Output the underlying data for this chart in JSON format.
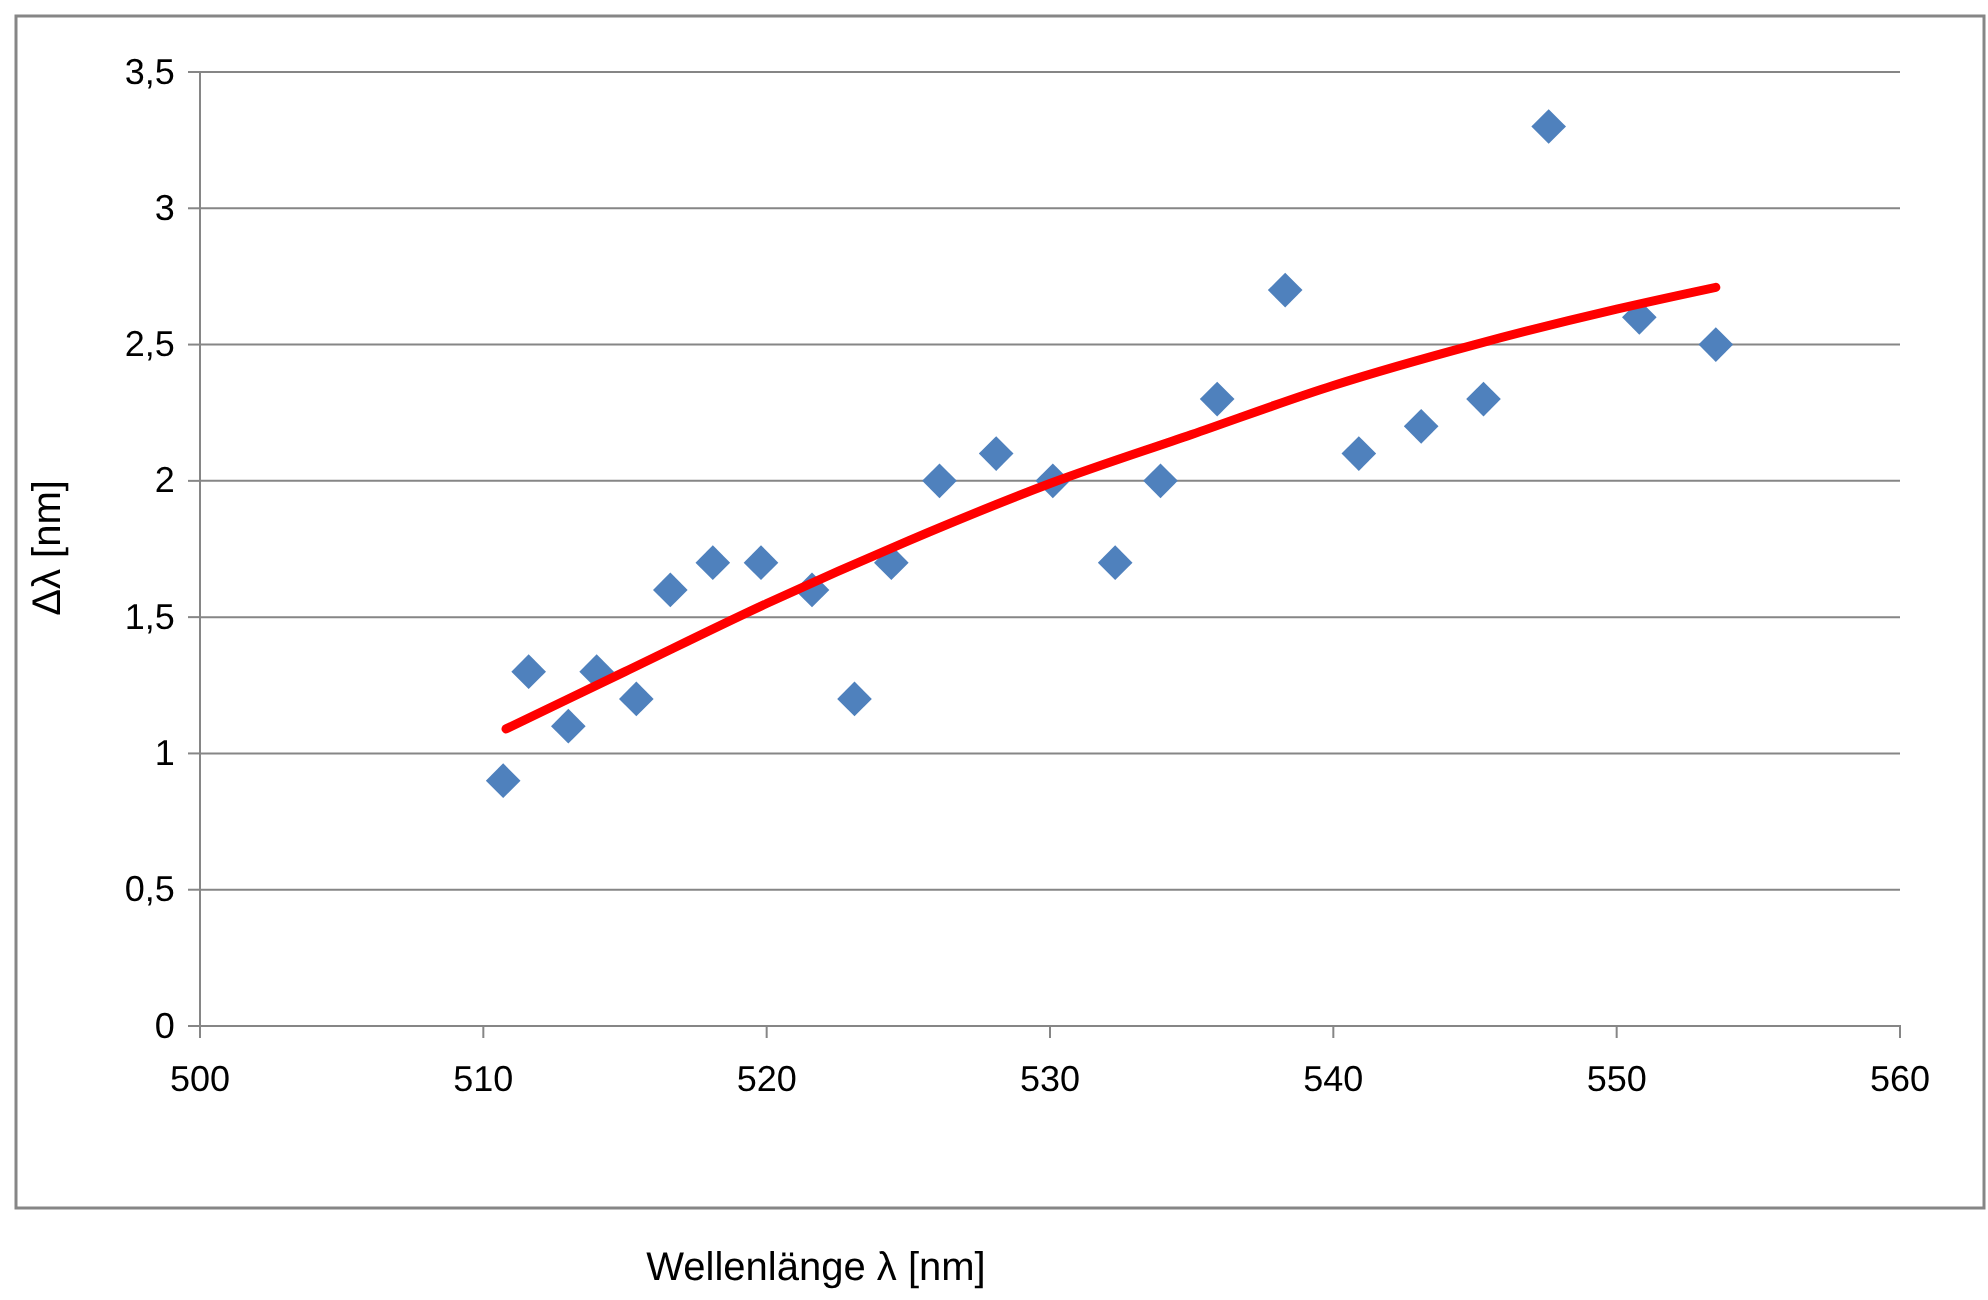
{
  "chart_data": {
    "type": "scatter",
    "xlabel": "Wellenlänge λ [nm]",
    "ylabel": "Δλ [nm]",
    "xlim": [
      500,
      560
    ],
    "xticks": [
      500,
      510,
      520,
      530,
      540,
      550,
      560
    ],
    "ylim": [
      0,
      3.5
    ],
    "yticks": [
      {
        "value": 0,
        "label": "0"
      },
      {
        "value": 0.5,
        "label": "0,5"
      },
      {
        "value": 1,
        "label": "1"
      },
      {
        "value": 1.5,
        "label": "1,5"
      },
      {
        "value": 2,
        "label": "2"
      },
      {
        "value": 2.5,
        "label": "2,5"
      },
      {
        "value": 3,
        "label": "3"
      },
      {
        "value": 3.5,
        "label": "3,5"
      }
    ],
    "grid": "y",
    "series": [
      {
        "type": "scatter",
        "marker": "diamond",
        "color": "#4f81bd",
        "x": [
          510.7,
          511.6,
          513.0,
          514.0,
          515.4,
          516.6,
          518.1,
          519.8,
          521.6,
          523.1,
          524.4,
          526.1,
          528.1,
          530.1,
          532.3,
          533.9,
          535.9,
          538.3,
          540.9,
          543.1,
          545.3,
          547.6,
          550.8,
          553.5
        ],
        "values": [
          0.9,
          1.3,
          1.1,
          1.3,
          1.2,
          1.6,
          1.7,
          1.7,
          1.6,
          1.2,
          1.7,
          2.0,
          2.1,
          2.0,
          1.7,
          2.0,
          2.3,
          2.7,
          2.1,
          2.2,
          2.3,
          3.3,
          2.6,
          2.5
        ]
      },
      {
        "type": "line",
        "color": "#ff0000",
        "x": [
          510.8,
          515,
          520,
          525,
          530,
          535,
          540,
          545,
          550,
          553.5
        ],
        "values": [
          1.09,
          1.3,
          1.55,
          1.78,
          1.99,
          2.17,
          2.35,
          2.5,
          2.63,
          2.71
        ]
      }
    ]
  }
}
